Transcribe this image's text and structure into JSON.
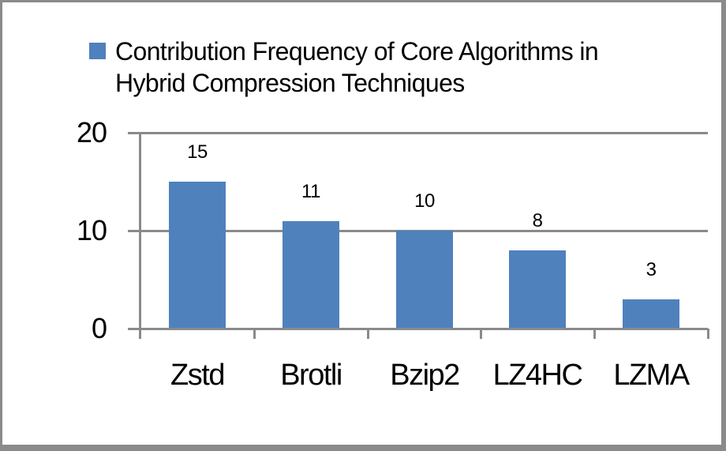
{
  "chart_data": {
    "type": "bar",
    "title": "",
    "legend": {
      "position": "top",
      "lines": [
        "Contribution Frequency of Core Algorithms in",
        "Hybrid Compression Techniques"
      ]
    },
    "categories": [
      "Zstd",
      "Brotli",
      "Bzip2",
      "LZ4HC",
      "LZMA"
    ],
    "values": [
      15,
      11,
      10,
      8,
      3
    ],
    "data_labels": [
      "15",
      "11",
      "10",
      "8",
      "3"
    ],
    "y_axis": {
      "ylim": [
        0,
        20
      ],
      "ticks": [
        0,
        10,
        20
      ],
      "tick_labels": [
        "0",
        "10",
        "20"
      ]
    },
    "x_axis": {
      "label": ""
    },
    "grid": "horizontal-at-ticks",
    "layout_hints": {
      "legend_position": "top",
      "data_labels_position": "above-bars"
    },
    "colors": {
      "bar": "#4F81BD",
      "axis": "#8A8A8A",
      "gridline": "#8A8A8A",
      "frame": "#8A8A8A",
      "text": "#000000",
      "background": "#FFFFFF"
    }
  }
}
